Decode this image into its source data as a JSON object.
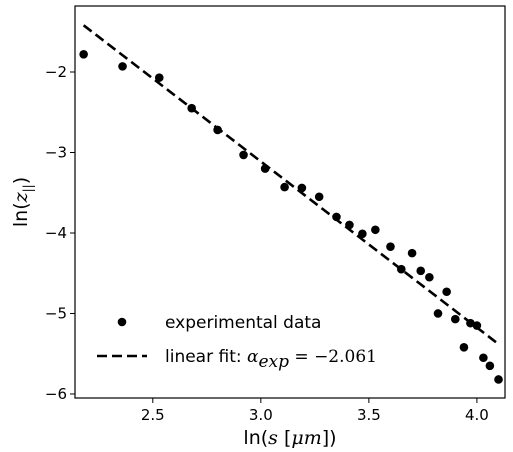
{
  "chart_data": {
    "type": "scatter",
    "xlabel": "ln(s [μm])",
    "ylabel": "ln(z||)",
    "xlim": [
      2.14,
      4.13
    ],
    "ylim": [
      -6.05,
      -1.18
    ],
    "x_ticks": [
      2.5,
      3.0,
      3.5,
      4.0
    ],
    "x_tick_labels": [
      "2.5",
      "3.0",
      "3.5",
      "4.0"
    ],
    "y_ticks": [
      -2,
      -3,
      -4,
      -5,
      -6
    ],
    "y_tick_labels": [
      "−2",
      "−3",
      "−4",
      "−5",
      "−6"
    ],
    "grid": false,
    "legend_position": "lower-left",
    "series": [
      {
        "name": "experimental data",
        "marker": "circle",
        "color": "#000000",
        "x": [
          2.18,
          2.36,
          2.53,
          2.68,
          2.8,
          2.92,
          3.02,
          3.11,
          3.19,
          3.27,
          3.35,
          3.41,
          3.47,
          3.53,
          3.6,
          3.65,
          3.7,
          3.74,
          3.78,
          3.82,
          3.86,
          3.9,
          3.94,
          3.97,
          4.0,
          4.03,
          4.06,
          4.1
        ],
        "y": [
          -1.78,
          -1.93,
          -2.07,
          -2.45,
          -2.72,
          -3.03,
          -3.2,
          -3.43,
          -3.44,
          -3.55,
          -3.8,
          -3.9,
          -4.01,
          -3.96,
          -4.17,
          -4.45,
          -4.25,
          -4.47,
          -4.55,
          -5.0,
          -4.73,
          -5.07,
          -5.42,
          -5.12,
          -5.15,
          -5.55,
          -5.65,
          -5.82
        ]
      },
      {
        "name": "linear fit",
        "line_style": "dashed",
        "color": "#000000",
        "slope": -2.061,
        "x": [
          2.18,
          4.09
        ],
        "y": [
          -1.42,
          -5.36
        ]
      }
    ],
    "legend": [
      {
        "label": "experimental data"
      },
      {
        "label_prefix": "linear fit: ",
        "label_math": "α",
        "label_sub": "exp",
        "label_suffix": " = −2.061"
      }
    ]
  }
}
